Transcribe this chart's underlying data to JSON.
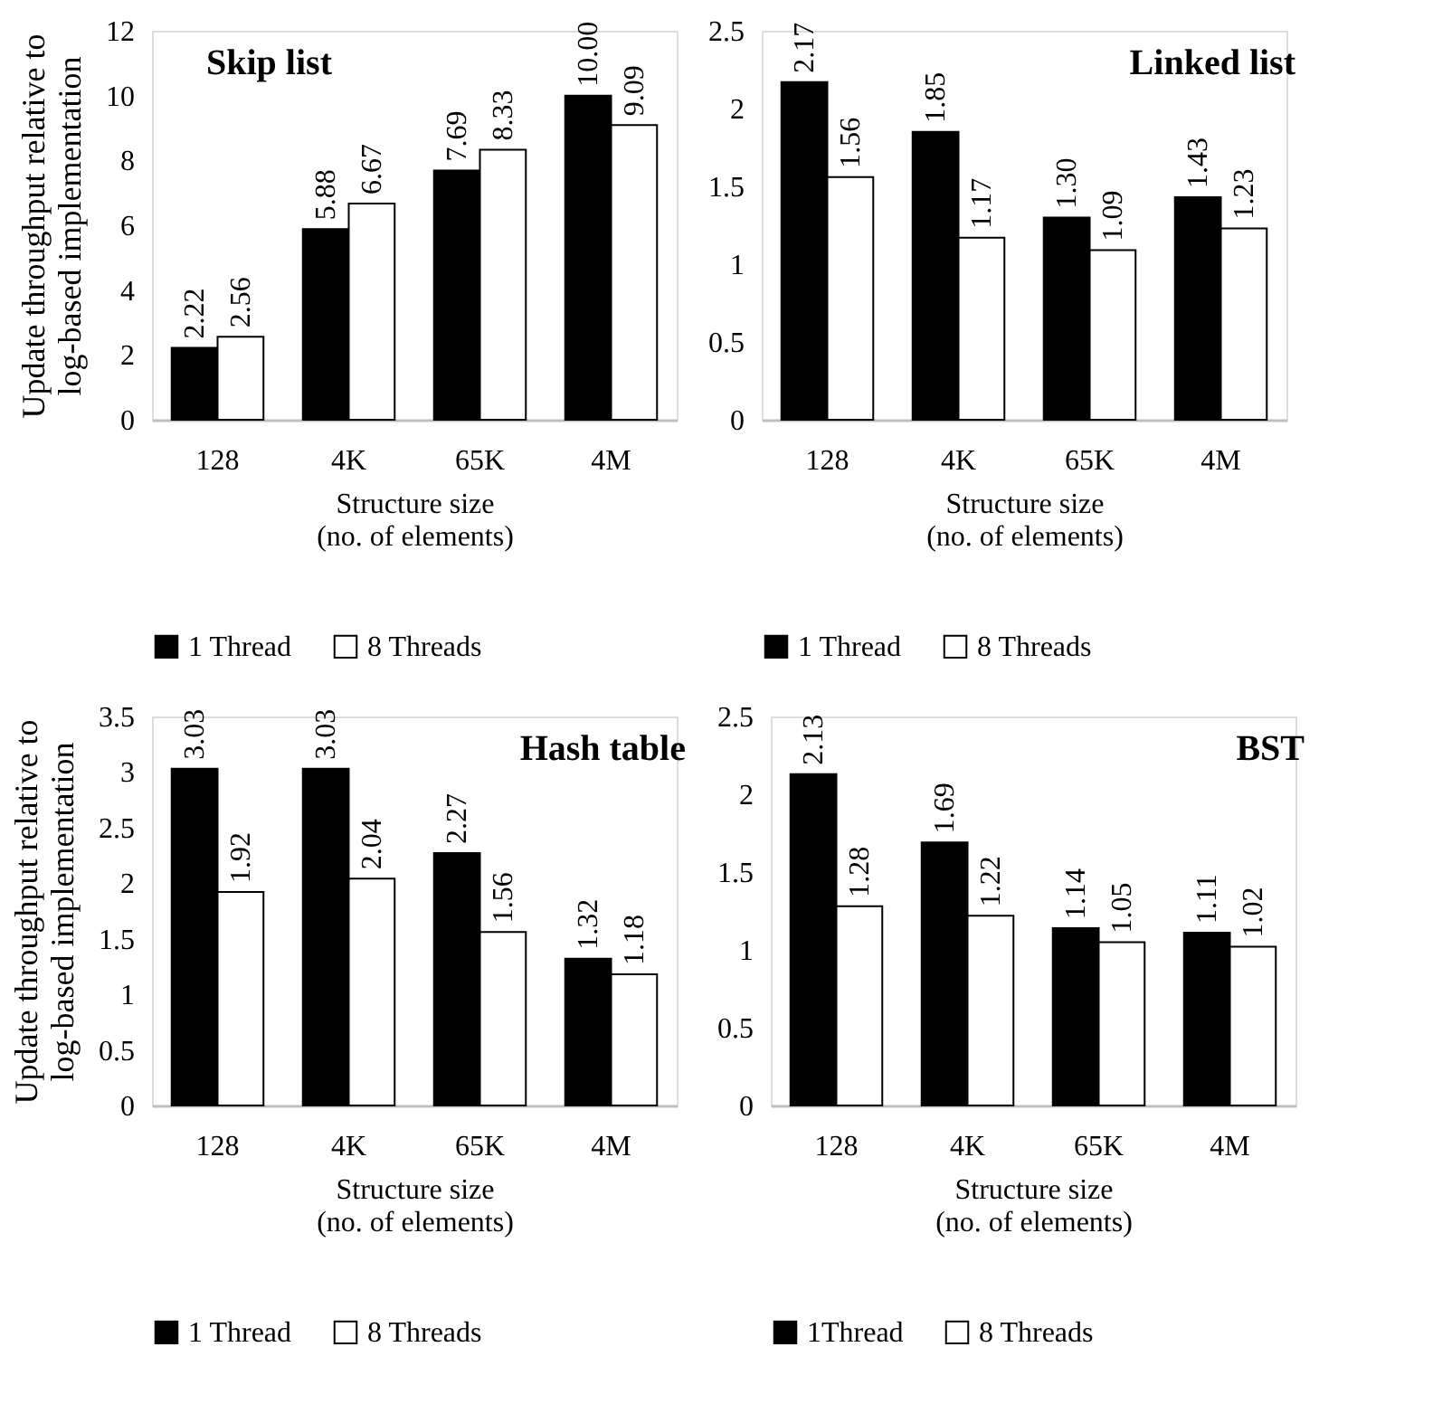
{
  "chart_data": [
    {
      "type": "bar",
      "title": "Skip list",
      "xlabel": [
        "Structure size",
        "(no. of elements)"
      ],
      "ylabel": [
        "Update throughput relative to",
        "log-based implementation"
      ],
      "categories": [
        "128",
        "4K",
        "65K",
        "4M"
      ],
      "ylim": [
        0,
        12
      ],
      "yticks": [
        0,
        2,
        4,
        6,
        8,
        10,
        12
      ],
      "legend": "bottom",
      "grid": false,
      "series": [
        {
          "name": "1 Thread",
          "color": "#000000",
          "values": [
            2.22,
            5.88,
            7.69,
            10.0
          ],
          "value_labels": [
            "2.22",
            "5.88",
            "7.69",
            "10.00"
          ]
        },
        {
          "name": "8 Threads",
          "color": "#ffffff",
          "values": [
            2.56,
            6.67,
            8.33,
            9.09
          ],
          "value_labels": [
            "2.56",
            "6.67",
            "8.33",
            "9.09"
          ]
        }
      ]
    },
    {
      "type": "bar",
      "title": "Linked list",
      "xlabel": [
        "Structure size",
        "(no. of elements)"
      ],
      "categories": [
        "128",
        "4K",
        "65K",
        "4M"
      ],
      "ylim": [
        0,
        2.5
      ],
      "yticks": [
        0,
        0.5,
        1,
        1.5,
        2,
        2.5
      ],
      "legend": "bottom",
      "grid": false,
      "series": [
        {
          "name": "1 Thread",
          "color": "#000000",
          "values": [
            2.17,
            1.85,
            1.3,
            1.43
          ],
          "value_labels": [
            "2.17",
            "1.85",
            "1.30",
            "1.43"
          ]
        },
        {
          "name": "8 Threads",
          "color": "#ffffff",
          "values": [
            1.56,
            1.17,
            1.09,
            1.23
          ],
          "value_labels": [
            "1.56",
            "1.17",
            "1.09",
            "1.23"
          ]
        }
      ]
    },
    {
      "type": "bar",
      "title": "Hash table",
      "xlabel": [
        "Structure size",
        "(no. of elements)"
      ],
      "ylabel": [
        "Update throughput relative to",
        "log-based implementation"
      ],
      "categories": [
        "128",
        "4K",
        "65K",
        "4M"
      ],
      "ylim": [
        0,
        3.5
      ],
      "yticks": [
        0,
        0.5,
        1,
        1.5,
        2,
        2.5,
        3,
        3.5
      ],
      "legend": "bottom",
      "grid": false,
      "series": [
        {
          "name": "1 Thread",
          "color": "#000000",
          "values": [
            3.03,
            3.03,
            2.27,
            1.32
          ],
          "value_labels": [
            "3.03",
            "3.03",
            "2.27",
            "1.32"
          ]
        },
        {
          "name": "8 Threads",
          "color": "#ffffff",
          "values": [
            1.92,
            2.04,
            1.56,
            1.18
          ],
          "value_labels": [
            "1.92",
            "2.04",
            "1.56",
            "1.18"
          ]
        }
      ]
    },
    {
      "type": "bar",
      "title": "BST",
      "xlabel": [
        "Structure size",
        "(no. of elements)"
      ],
      "categories": [
        "128",
        "4K",
        "65K",
        "4M"
      ],
      "ylim": [
        0,
        2.5
      ],
      "yticks": [
        0,
        0.5,
        1,
        1.5,
        2,
        2.5
      ],
      "legend": "bottom",
      "grid": false,
      "series": [
        {
          "name": "1Thread",
          "color": "#000000",
          "values": [
            2.13,
            1.69,
            1.14,
            1.11
          ],
          "value_labels": [
            "2.13",
            "1.69",
            "1.14",
            "1.11"
          ]
        },
        {
          "name": "8 Threads",
          "color": "#ffffff",
          "values": [
            1.28,
            1.22,
            1.05,
            1.02
          ],
          "value_labels": [
            "1.28",
            "1.22",
            "1.05",
            "1.02"
          ]
        }
      ]
    }
  ]
}
